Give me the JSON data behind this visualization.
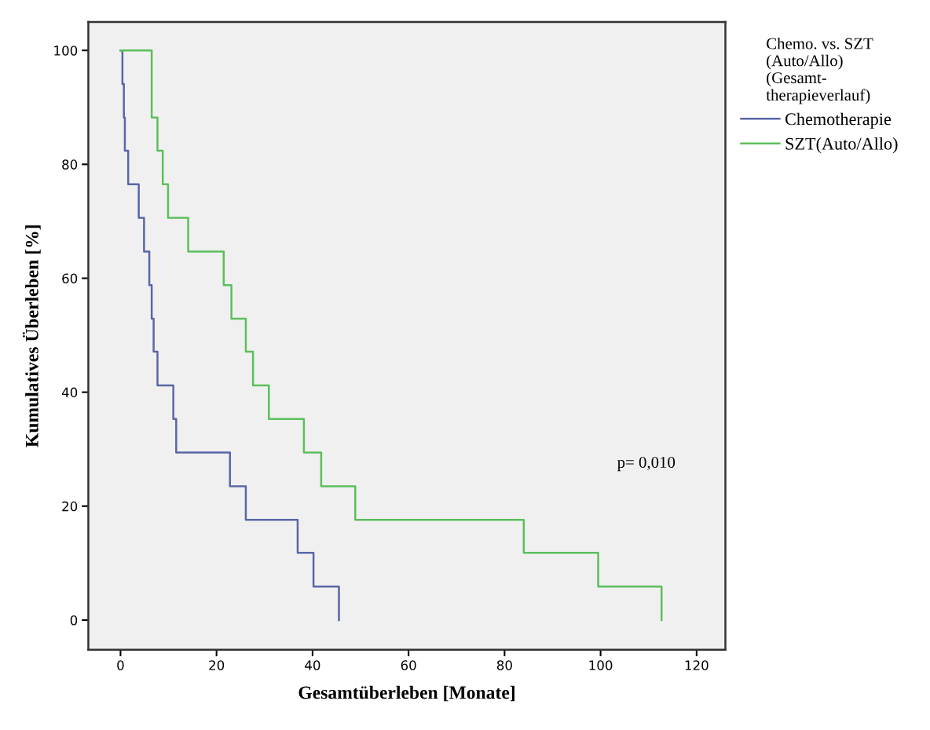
{
  "chart_data": {
    "type": "step",
    "xlabel": "Gesamtüberleben [Monate]",
    "ylabel": "Kumulatives Überleben [%]",
    "legend_title": "Chemo. vs. SZT\n(Auto/Allo)\n(Gesamt-\ntherapieverlauf)",
    "series": [
      {
        "name": "Chemotherapie",
        "color": "#5a66a8",
        "x": [
          0,
          0.4,
          0.7,
          0.9,
          1.6,
          3.8,
          4.9,
          6.0,
          6.5,
          6.9,
          7.7,
          11.0,
          11.6,
          22.8,
          26.1,
          36.9,
          40.2,
          45.5
        ],
        "values": [
          100,
          94.1,
          88.2,
          82.4,
          76.5,
          70.6,
          64.7,
          58.8,
          52.9,
          47.1,
          41.2,
          35.3,
          29.4,
          23.5,
          17.6,
          11.8,
          5.9,
          0
        ]
      },
      {
        "name": "SZT(Auto/Allo)",
        "color": "#5cbf5c",
        "x": [
          0,
          6.5,
          7.7,
          8.8,
          9.9,
          14.1,
          21.5,
          23.1,
          26.1,
          27.6,
          30.9,
          38.2,
          41.8,
          48.9,
          84.0,
          99.5,
          112.7
        ],
        "values": [
          100,
          88.2,
          82.4,
          76.5,
          70.6,
          64.7,
          58.8,
          52.9,
          47.1,
          41.2,
          35.3,
          29.4,
          23.5,
          17.6,
          11.8,
          5.9,
          0
        ]
      }
    ],
    "xlim": [
      -6.7,
      126
    ],
    "xticks": [
      0,
      20,
      40,
      60,
      80,
      100,
      120
    ],
    "ylim": [
      -5.2,
      105
    ],
    "yticks": [
      0,
      20,
      40,
      60,
      80,
      100
    ],
    "annotations": [
      "p= 0,010"
    ],
    "grid": false,
    "legend": "right"
  }
}
